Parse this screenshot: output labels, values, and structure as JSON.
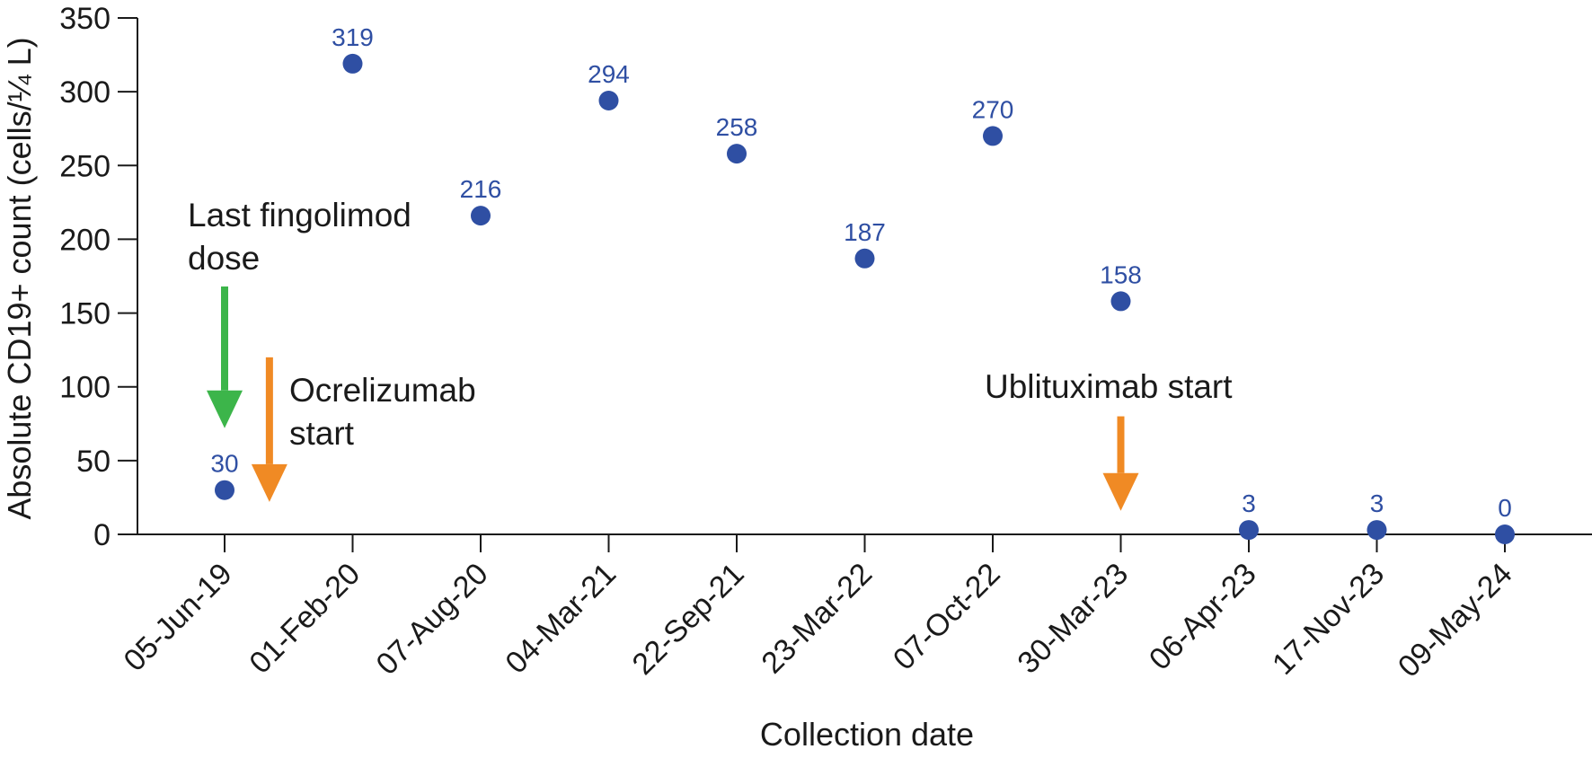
{
  "chart_data": {
    "type": "scatter",
    "title": "",
    "xlabel": "Collection date",
    "ylabel": "Absolute CD19+ count (cells/¼ L)",
    "ylim": [
      0,
      350
    ],
    "yticks": [
      0,
      50,
      100,
      150,
      200,
      250,
      300,
      350
    ],
    "categories": [
      "05-Jun-19",
      "01-Feb-20",
      "07-Aug-20",
      "04-Mar-21",
      "22-Sep-21",
      "23-Mar-22",
      "07-Oct-22",
      "30-Mar-23",
      "06-Apr-23",
      "17-Nov-23",
      "09-May-24"
    ],
    "series": [
      {
        "name": "Absolute CD19+ count",
        "values": [
          30,
          319,
          216,
          294,
          258,
          187,
          270,
          158,
          3,
          3,
          0
        ],
        "labels": [
          "30",
          "319",
          "216",
          "294",
          "258",
          "187",
          "270",
          "158",
          "3",
          "3",
          "0"
        ]
      }
    ],
    "annotations": [
      {
        "id": "fingolimod",
        "lines": [
          "Last fingolimod",
          "dose"
        ],
        "arrow_color": "#3cb54a",
        "position": 0.0,
        "from": 168,
        "to": 72
      },
      {
        "id": "ocrelizumab",
        "lines": [
          "Ocrelizumab",
          "start"
        ],
        "arrow_color": "#f08a24",
        "position": 0.35,
        "from": 120,
        "to": 22
      },
      {
        "id": "ublituximab",
        "lines": [
          "Ublituximab start"
        ],
        "arrow_color": "#f08a24",
        "position": 7.0,
        "from": 80,
        "to": 16
      }
    ]
  },
  "colors": {
    "point": "#2f4fa3",
    "label": "#2f4fa3",
    "axis": "#1a1a1a"
  }
}
